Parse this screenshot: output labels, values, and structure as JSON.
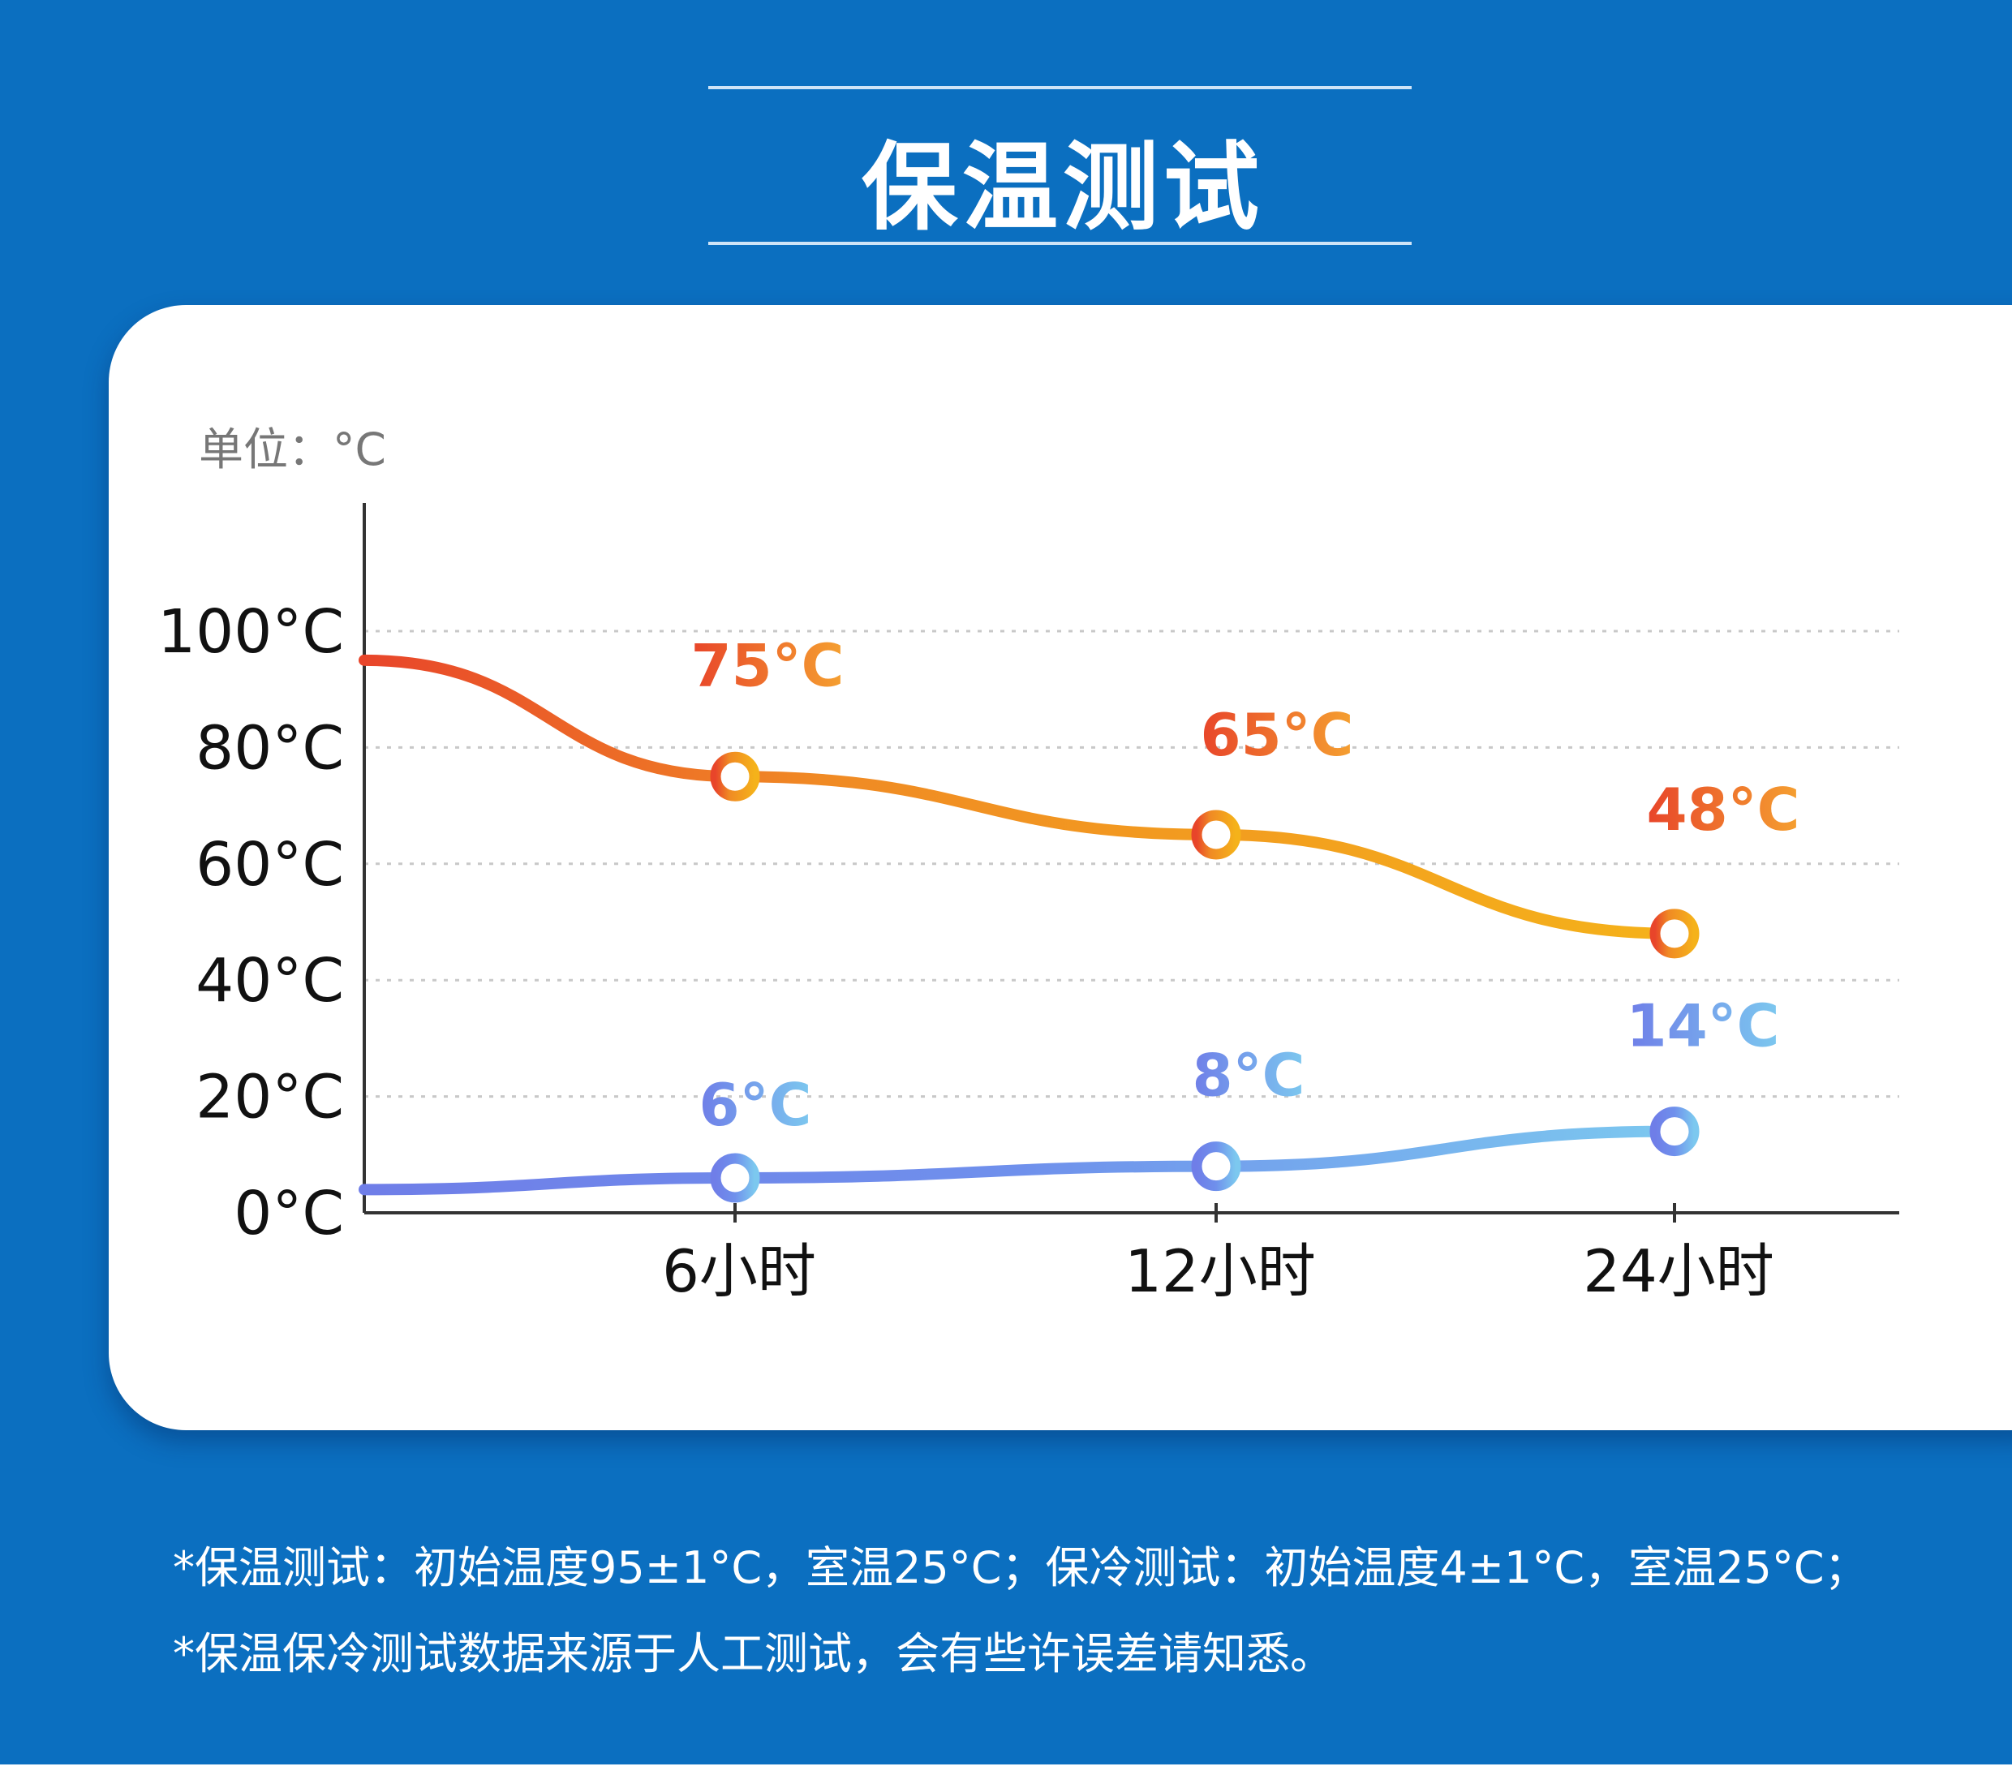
{
  "header": {
    "title": "保温测试"
  },
  "chart_data": {
    "type": "line",
    "unit_label": "单位：°C",
    "categories": [
      "6小时",
      "12小时",
      "24小时"
    ],
    "x_hours": [
      6,
      12,
      24
    ],
    "yticks": [
      "100°C",
      "80°C",
      "60°C",
      "40°C",
      "20°C",
      "0°C"
    ],
    "ytick_values": [
      100,
      80,
      60,
      40,
      20,
      0
    ],
    "ylim": [
      0,
      115
    ],
    "grid": "dotted horizontal",
    "series": [
      {
        "name": "保温",
        "start": 95,
        "values": [
          75,
          65,
          48
        ],
        "labels": [
          "75°C",
          "65°C",
          "48°C"
        ],
        "colors": [
          "#e8452a",
          "#f5b21a"
        ]
      },
      {
        "name": "保冷",
        "start": 4,
        "values": [
          6,
          8,
          14
        ],
        "labels": [
          "6°C",
          "8°C",
          "14°C"
        ],
        "colors": [
          "#6f7ee8",
          "#7cc8ef"
        ]
      }
    ]
  },
  "footnotes": [
    "*保温测试：初始温度95±1°C，室温25°C；保冷测试：初始温度4±1°C，室温25°C；",
    "*保温保冷测试数据来源于人工测试，会有些许误差请知悉。"
  ]
}
